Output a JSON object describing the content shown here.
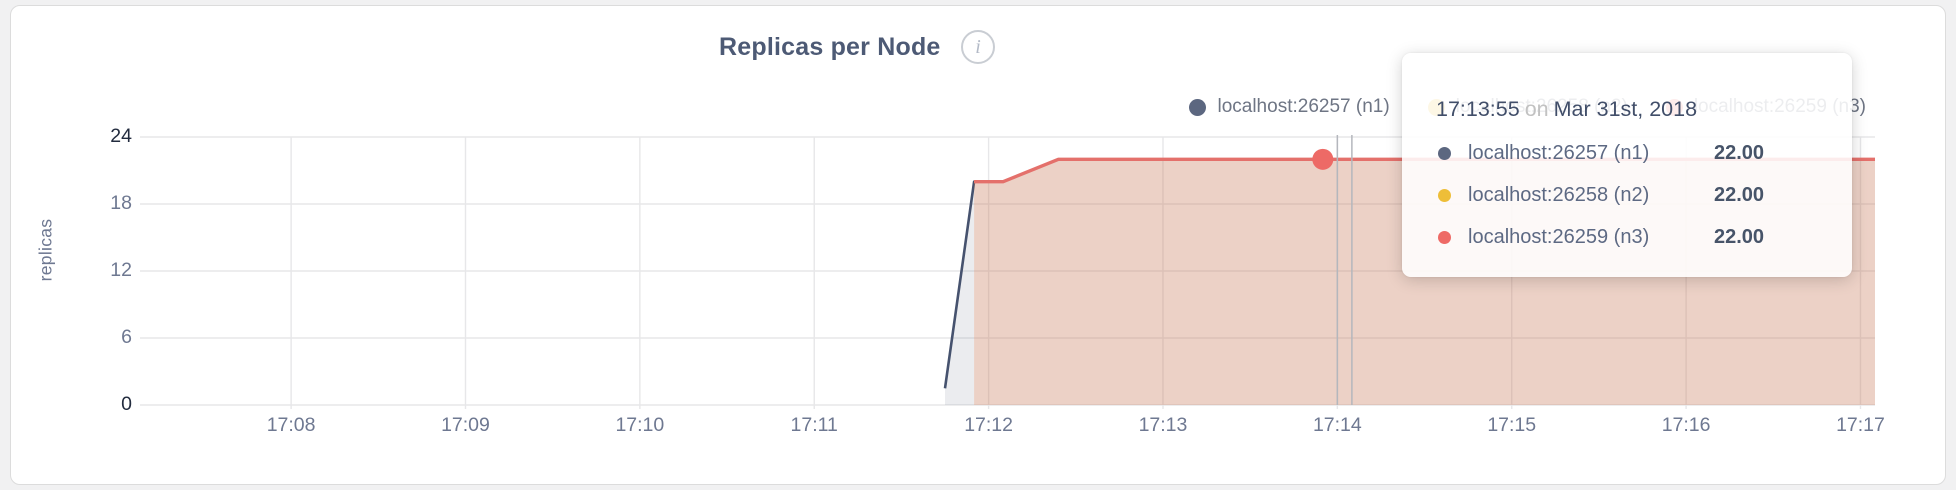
{
  "header": {
    "title": "Replicas per Node"
  },
  "legend": {
    "items": [
      {
        "label": "localhost:26257 (n1)",
        "color": "#5c6780"
      },
      {
        "label": "localhost:26258 (n2)",
        "color": "#eebe38"
      },
      {
        "label": "localhost:26259 (n3)",
        "color": "#ee6a66"
      }
    ]
  },
  "chart_data": {
    "type": "area",
    "title": "Replicas per Node",
    "xlabel": "",
    "ylabel": "replicas",
    "ylim": [
      0,
      24
    ],
    "yticks": [
      0,
      6,
      12,
      18,
      24
    ],
    "ytick_emphasis": [
      0,
      24
    ],
    "xticks": [
      "17:08",
      "17:09",
      "17:10",
      "17:11",
      "17:12",
      "17:13",
      "17:14",
      "17:15",
      "17:16",
      "17:17"
    ],
    "x_domain": [
      "17:07:08",
      "17:17:05"
    ],
    "grid": true,
    "legend_position": "top-right",
    "series": [
      {
        "name": "localhost:26257 (n1)",
        "line_color": "#46526e",
        "fill_color": "rgba(70,82,110,0.11)",
        "points": [
          [
            "17:11:45",
            1.5
          ],
          [
            "17:11:55",
            20
          ],
          [
            "17:12:05",
            20
          ],
          [
            "17:12:24",
            22
          ],
          [
            "17:17:05",
            22
          ]
        ]
      },
      {
        "name": "localhost:26258 (n2)",
        "line_color": "#eebe38",
        "fill_color": "rgba(238,190,56,0.12)",
        "points": [
          [
            "17:11:55",
            20
          ],
          [
            "17:12:05",
            20
          ],
          [
            "17:12:24",
            22
          ],
          [
            "17:17:05",
            22
          ]
        ]
      },
      {
        "name": "localhost:26259 (n3)",
        "line_color": "#e4706b",
        "fill_color": "rgba(241,105,105,0.17)",
        "points": [
          [
            "17:11:55",
            20
          ],
          [
            "17:12:05",
            20
          ],
          [
            "17:12:24",
            22
          ],
          [
            "17:17:05",
            22
          ]
        ]
      }
    ],
    "hover": {
      "time": "17:13:55",
      "crosshair_times": [
        "17:14:00",
        "17:14:05"
      ],
      "point": {
        "series": "localhost:26259 (n3)",
        "time": "17:13:55",
        "value": 22,
        "color": "#ed6a66"
      }
    }
  },
  "tooltip": {
    "time": "17:13:55",
    "conjunction": "on",
    "date": "Mar 31st, 2018",
    "rows": [
      {
        "label": "localhost:26257 (n1)",
        "value": "22.00",
        "color": "#5c6780"
      },
      {
        "label": "localhost:26258 (n2)",
        "value": "22.00",
        "color": "#eebe38"
      },
      {
        "label": "localhost:26259 (n3)",
        "value": "22.00",
        "color": "#ee6a66"
      }
    ]
  }
}
